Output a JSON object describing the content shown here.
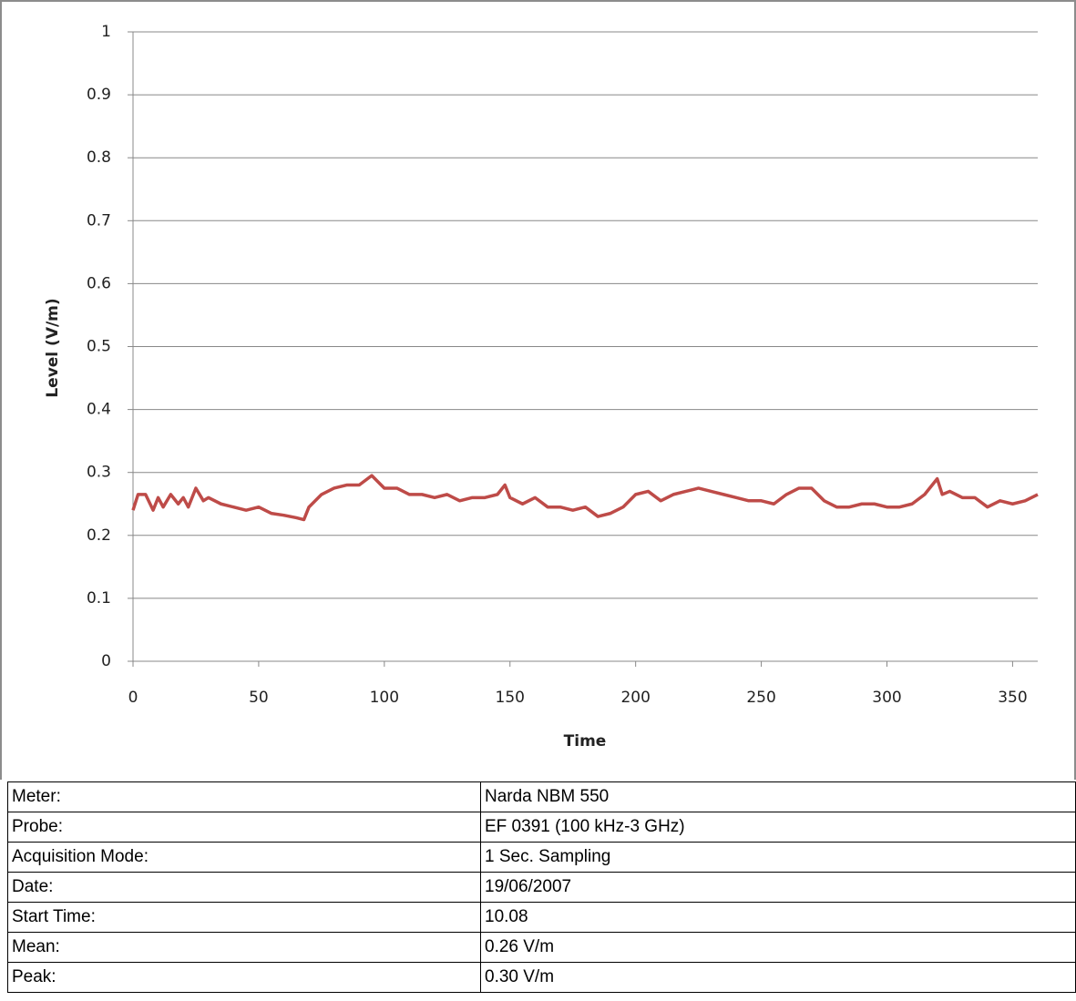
{
  "chart_data": {
    "type": "line",
    "x_label": "Time",
    "y_label": "Level (V/m)",
    "x": [
      0,
      2,
      5,
      8,
      10,
      12,
      15,
      18,
      20,
      22,
      25,
      28,
      30,
      35,
      40,
      45,
      50,
      55,
      60,
      65,
      68,
      70,
      75,
      80,
      85,
      90,
      95,
      100,
      105,
      110,
      115,
      120,
      125,
      130,
      135,
      140,
      145,
      148,
      150,
      155,
      160,
      165,
      170,
      175,
      180,
      185,
      190,
      195,
      200,
      205,
      210,
      215,
      220,
      225,
      230,
      235,
      240,
      245,
      250,
      255,
      260,
      265,
      270,
      275,
      280,
      285,
      290,
      295,
      300,
      305,
      310,
      315,
      320,
      322,
      325,
      330,
      335,
      340,
      345,
      350,
      355,
      360
    ],
    "values": [
      0.24,
      0.265,
      0.265,
      0.24,
      0.26,
      0.245,
      0.265,
      0.25,
      0.26,
      0.245,
      0.275,
      0.255,
      0.26,
      0.25,
      0.245,
      0.24,
      0.245,
      0.235,
      0.232,
      0.228,
      0.225,
      0.245,
      0.265,
      0.275,
      0.28,
      0.28,
      0.295,
      0.275,
      0.275,
      0.265,
      0.265,
      0.26,
      0.265,
      0.255,
      0.26,
      0.26,
      0.265,
      0.28,
      0.26,
      0.25,
      0.26,
      0.245,
      0.245,
      0.24,
      0.245,
      0.23,
      0.235,
      0.245,
      0.265,
      0.27,
      0.255,
      0.265,
      0.27,
      0.275,
      0.27,
      0.265,
      0.26,
      0.255,
      0.255,
      0.25,
      0.265,
      0.275,
      0.275,
      0.255,
      0.245,
      0.245,
      0.25,
      0.25,
      0.245,
      0.245,
      0.25,
      0.265,
      0.29,
      0.265,
      0.27,
      0.26,
      0.26,
      0.245,
      0.255,
      0.25,
      0.255,
      0.265
    ],
    "color": "#be4b48",
    "xlim": [
      0,
      360
    ],
    "xticks": [
      0,
      50,
      100,
      150,
      200,
      250,
      300,
      350
    ],
    "ylim": [
      0,
      1
    ],
    "yticks": [
      0,
      0.1,
      0.2,
      0.3,
      0.4,
      0.5,
      0.6,
      0.7,
      0.8,
      0.9,
      1
    ],
    "grid": true
  },
  "table": {
    "rows": [
      [
        "Meter:",
        "Narda NBM 550"
      ],
      [
        "Probe:",
        "EF 0391 (100 kHz-3 GHz)"
      ],
      [
        "Acquisition Mode:",
        "1 Sec. Sampling"
      ],
      [
        "Date:",
        "19/06/2007"
      ],
      [
        "Start Time:",
        "10.08"
      ],
      [
        "Mean:",
        "0.26 V/m"
      ],
      [
        "Peak:",
        "0.30 V/m"
      ]
    ]
  }
}
